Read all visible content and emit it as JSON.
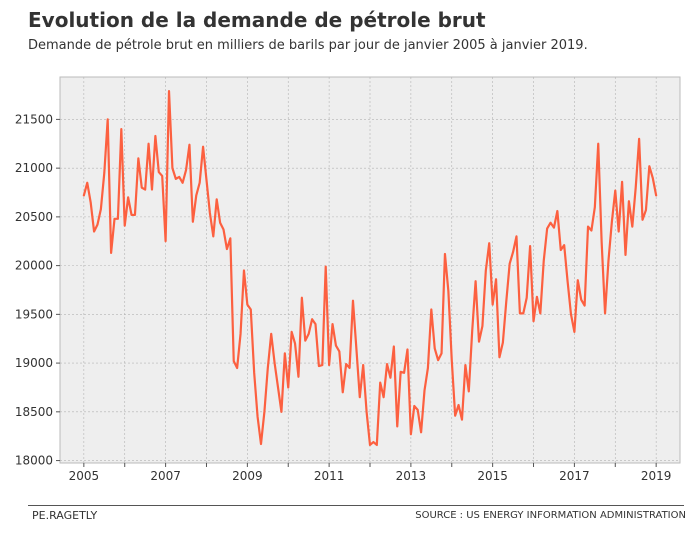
{
  "header": {
    "title": "Evolution de la demande de pétrole brut",
    "subtitle": "Demande de pétrole brut en milliers de barils par jour de janvier 2005 à janvier 2019."
  },
  "footer": {
    "author": "PE.RAGETLY",
    "source": "SOURCE : US ENERGY INFORMATION ADMINISTRATION"
  },
  "colors": {
    "line": "#fc6040",
    "plot_background": "#eeeeee",
    "grid": "#b3b3b3",
    "frame": "#bbbbbb"
  },
  "chart_data": {
    "type": "line",
    "xlabel": "",
    "ylabel": "",
    "x_start": "2005-01",
    "x_end": "2019-01",
    "x_frequency": "monthly",
    "xlim": [
      "2004-06",
      "2019-08"
    ],
    "ylim": [
      17975,
      21935
    ],
    "x_ticks": [
      "2005",
      "2007",
      "2009",
      "2011",
      "2013",
      "2015",
      "2017",
      "2019"
    ],
    "y_ticks": [
      18000,
      18500,
      19000,
      19500,
      20000,
      20500,
      21000,
      21500
    ],
    "grid": true,
    "series": [
      {
        "values": [
          20720,
          20850,
          20650,
          20350,
          20420,
          20580,
          20950,
          21500,
          20130,
          20480,
          20480,
          21400,
          20410,
          20700,
          20520,
          20520,
          21100,
          20800,
          20780,
          21250,
          20780,
          21330,
          20960,
          20920,
          20250,
          21790,
          21000,
          20890,
          20910,
          20850,
          20980,
          21240,
          20450,
          20720,
          20850,
          21220,
          20880,
          20540,
          20300,
          20680,
          20440,
          20370,
          20170,
          20280,
          19020,
          18950,
          19300,
          19950,
          19600,
          19550,
          18900,
          18450,
          18170,
          18500,
          18950,
          19300,
          19000,
          18750,
          18500,
          19100,
          18750,
          19320,
          19200,
          18860,
          19670,
          19230,
          19300,
          19450,
          19400,
          18970,
          18980,
          19990,
          18980,
          19400,
          19180,
          19120,
          18700,
          18990,
          18950,
          19640,
          19150,
          18650,
          18980,
          18500,
          18160,
          18190,
          18160,
          18800,
          18650,
          18990,
          18850,
          19170,
          18350,
          18910,
          18900,
          19140,
          18270,
          18560,
          18520,
          18290,
          18720,
          18950,
          19550,
          19150,
          19030,
          19100,
          20120,
          19740,
          19030,
          18460,
          18570,
          18420,
          18980,
          18710,
          19330,
          19840,
          19220,
          19380,
          19950,
          20230,
          19600,
          19860,
          19060,
          19210,
          19630,
          20020,
          20140,
          20300,
          19510,
          19510,
          19670,
          20200,
          19430,
          19680,
          19510,
          20050,
          20380,
          20440,
          20390,
          20560,
          20160,
          20210,
          19840,
          19500,
          19320,
          19850,
          19650,
          19590,
          20400,
          20360,
          20600,
          21250,
          20240,
          19510,
          20050,
          20450,
          20770,
          20350,
          20860,
          20110,
          20660,
          20400,
          20800,
          21300,
          20470,
          20570,
          21020,
          20900,
          20720
        ]
      }
    ]
  }
}
